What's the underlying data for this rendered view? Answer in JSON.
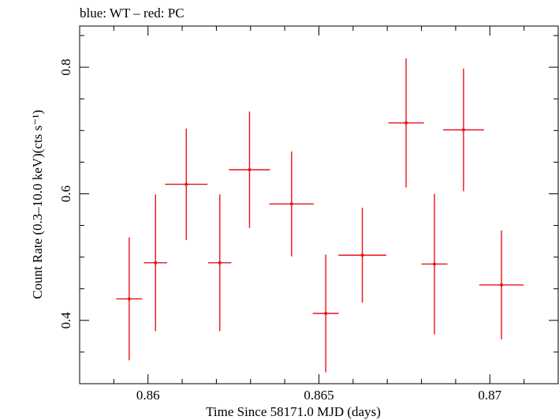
{
  "chart_data": {
    "type": "scatter",
    "title": "blue: WT – red: PC",
    "xlabel": "Time Since 58171.0 MJD (days)",
    "ylabel": "Count Rate (0.3–10.0 keV)(cts s⁻¹)",
    "xlim": [
      0.858,
      0.872
    ],
    "ylim": [
      0.3,
      0.865
    ],
    "x_ticks": [
      0.86,
      0.865,
      0.87
    ],
    "x_tick_labels": [
      "0.86",
      "0.865",
      "0.87"
    ],
    "y_ticks": [
      0.4,
      0.6,
      0.8
    ],
    "y_tick_labels": [
      "0.4",
      "0.6",
      "0.8"
    ],
    "grid": false,
    "series": [
      {
        "name": "PC",
        "color": "#e8141b",
        "points": [
          {
            "x": 0.85945,
            "xerr": 0.00038,
            "y": 0.434,
            "yerr": 0.097
          },
          {
            "x": 0.86022,
            "xerr": 0.00034,
            "y": 0.491,
            "yerr": 0.108
          },
          {
            "x": 0.86112,
            "xerr": 0.00062,
            "y": 0.615,
            "yerr": 0.088
          },
          {
            "x": 0.8621,
            "xerr": 0.00034,
            "y": 0.491,
            "yerr": 0.108
          },
          {
            "x": 0.86297,
            "xerr": 0.0006,
            "y": 0.638,
            "yerr": 0.092
          },
          {
            "x": 0.8642,
            "xerr": 0.00065,
            "y": 0.584,
            "yerr": 0.083
          },
          {
            "x": 0.8652,
            "xerr": 0.00038,
            "y": 0.411,
            "yerr": 0.093
          },
          {
            "x": 0.86627,
            "xerr": 0.0007,
            "y": 0.503,
            "yerr": 0.075
          },
          {
            "x": 0.86755,
            "xerr": 0.00052,
            "y": 0.712,
            "yerr": 0.102
          },
          {
            "x": 0.86923,
            "xerr": 0.0006,
            "y": 0.701,
            "yerr": 0.097
          },
          {
            "x": 0.86838,
            "xerr": 0.00038,
            "y": 0.489,
            "yerr": 0.111
          },
          {
            "x": 0.87034,
            "xerr": 0.00065,
            "y": 0.456,
            "yerr": 0.086
          }
        ]
      }
    ]
  }
}
